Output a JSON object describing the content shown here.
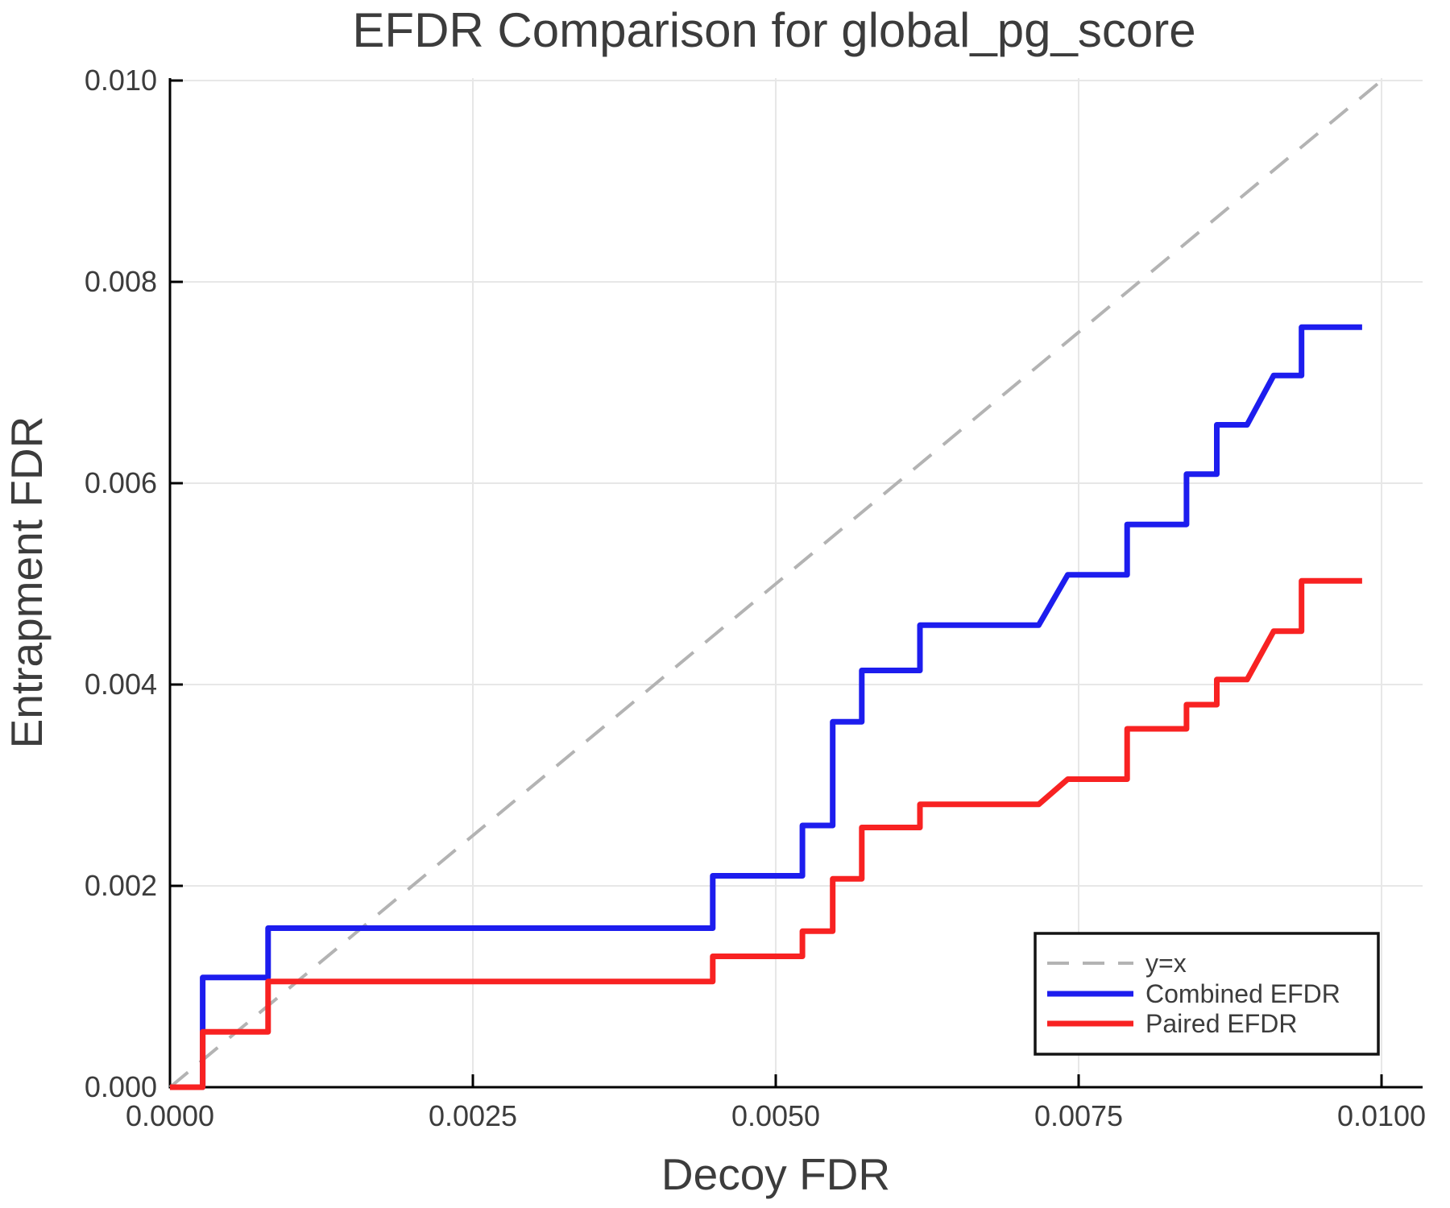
{
  "title": "EFDR Comparison for global_pg_score",
  "chart_data": {
    "type": "line",
    "title": "EFDR Comparison for global_pg_score",
    "xlabel": "Decoy FDR",
    "ylabel": "Entrapment FDR",
    "xlim": [
      0,
      0.01033
    ],
    "ylim": [
      0,
      0.01
    ],
    "grid": true,
    "legend_position": "lower right",
    "x_ticks": [
      0,
      0.0025,
      0.005,
      0.0075,
      0.01
    ],
    "x_tick_labels": [
      "0.0000",
      "0.0025",
      "0.0050",
      "0.0075",
      "0.0100"
    ],
    "y_ticks": [
      0,
      0.002,
      0.004,
      0.006,
      0.008,
      0.01
    ],
    "y_tick_labels": [
      "0.000",
      "0.002",
      "0.004",
      "0.006",
      "0.008",
      "0.010"
    ],
    "colors": {
      "identity": "#b3b3b3",
      "combined": "#1d1dee",
      "paired": "#f82222",
      "grid": "#e7e7e7",
      "spine": "#000000",
      "text": "#3c3c3c"
    },
    "series": [
      {
        "name": "y=x",
        "style": "dashed",
        "color": "#b3b3b3",
        "points": [
          [
            0,
            0
          ],
          [
            0.01,
            0.01
          ]
        ]
      },
      {
        "name": "Combined EFDR",
        "style": "solid",
        "color": "#1d1dee",
        "points": [
          [
            0,
            0
          ],
          [
            0.00027,
            0
          ],
          [
            0.00027,
            0.00109
          ],
          [
            0.00081,
            0.00109
          ],
          [
            0.00081,
            0.00158
          ],
          [
            0.00448,
            0.00158
          ],
          [
            0.00448,
            0.0021
          ],
          [
            0.00522,
            0.0021
          ],
          [
            0.00522,
            0.0026
          ],
          [
            0.00547,
            0.0026
          ],
          [
            0.00547,
            0.00363
          ],
          [
            0.00571,
            0.00363
          ],
          [
            0.00571,
            0.00414
          ],
          [
            0.00619,
            0.00414
          ],
          [
            0.00619,
            0.00459
          ],
          [
            0.00717,
            0.00459
          ],
          [
            0.00741,
            0.00509
          ],
          [
            0.0079,
            0.00509
          ],
          [
            0.0079,
            0.00559
          ],
          [
            0.00839,
            0.00559
          ],
          [
            0.00839,
            0.00609
          ],
          [
            0.00864,
            0.00609
          ],
          [
            0.00864,
            0.00658
          ],
          [
            0.00889,
            0.00658
          ],
          [
            0.00911,
            0.00707
          ],
          [
            0.00934,
            0.00707
          ],
          [
            0.00934,
            0.00755
          ],
          [
            0.00984,
            0.00755
          ]
        ]
      },
      {
        "name": "Paired EFDR",
        "style": "solid",
        "color": "#f82222",
        "points": [
          [
            0,
            0
          ],
          [
            0.00027,
            0
          ],
          [
            0.00027,
            0.00055
          ],
          [
            0.00081,
            0.00055
          ],
          [
            0.00081,
            0.00105
          ],
          [
            0.00448,
            0.00105
          ],
          [
            0.00448,
            0.0013
          ],
          [
            0.00522,
            0.0013
          ],
          [
            0.00522,
            0.00155
          ],
          [
            0.00547,
            0.00155
          ],
          [
            0.00547,
            0.00207
          ],
          [
            0.00571,
            0.00207
          ],
          [
            0.00571,
            0.00258
          ],
          [
            0.00619,
            0.00258
          ],
          [
            0.00619,
            0.00281
          ],
          [
            0.00717,
            0.00281
          ],
          [
            0.00741,
            0.00306
          ],
          [
            0.0079,
            0.00306
          ],
          [
            0.0079,
            0.00356
          ],
          [
            0.00839,
            0.00356
          ],
          [
            0.00839,
            0.0038
          ],
          [
            0.00864,
            0.0038
          ],
          [
            0.00864,
            0.00405
          ],
          [
            0.00889,
            0.00405
          ],
          [
            0.00911,
            0.00453
          ],
          [
            0.00934,
            0.00453
          ],
          [
            0.00934,
            0.00503
          ],
          [
            0.00984,
            0.00503
          ]
        ]
      }
    ]
  }
}
